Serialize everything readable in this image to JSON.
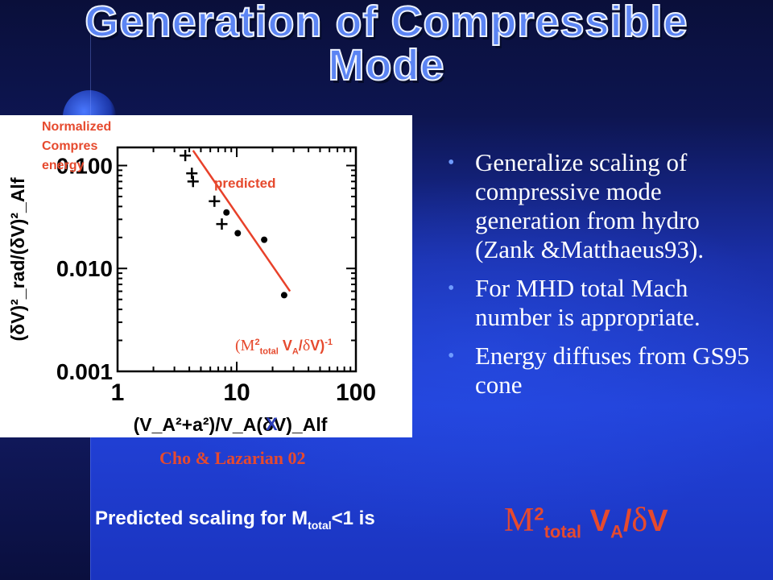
{
  "slide": {
    "title_line1": "Generation of Compressible",
    "title_line2": "Mode",
    "bullets": [
      "Generalize  scaling of compressive mode generation from hydro (Zank &Matthaeus93).",
      "For MHD total Mach number is appropriate.",
      "Energy diffuses from GS95 cone"
    ],
    "caption": "Cho & Lazarian 02",
    "bottom_text": "Predicted scaling for M",
    "bottom_sub": "total",
    "bottom_tail": "<1 is",
    "bottom_formula": {
      "m": "M",
      "sup": "2",
      "sub1": "total",
      "v": " V",
      "sub2": "A",
      "slash": "/",
      "delta": "δ",
      "v2": "V"
    },
    "annotations": {
      "normalized_lines": [
        "Normalized",
        "Compres",
        "energy"
      ],
      "predicted": "predicted",
      "scaling": {
        "open": "(",
        "m": "M",
        "sup": "2",
        "sub1": "total",
        "v": " V",
        "sub2": "A",
        "slash": "/",
        "delta": "δ",
        "close": "V)",
        "exp": "-1"
      },
      "x_marker": "X"
    },
    "colors": {
      "accent": "#e64a2e",
      "title_fill": "#5b84f3",
      "bullet": "#6f9bff"
    }
  },
  "chart_data": {
    "type": "scatter",
    "x_scale": "log",
    "y_scale": "log",
    "xlim": [
      1,
      100
    ],
    "ylim": [
      0.001,
      0.15
    ],
    "x_ticks": [
      {
        "v": 1,
        "label": "1"
      },
      {
        "v": 10,
        "label": "10"
      },
      {
        "v": 100,
        "label": "100"
      }
    ],
    "y_ticks": [
      {
        "v": 0.001,
        "label": "0.001"
      },
      {
        "v": 0.01,
        "label": "0.010"
      },
      {
        "v": 0.1,
        "label": "0.100"
      }
    ],
    "xlabel": "(V_A²+a²)/V_A(δV)_Alf",
    "ylabel": "(δV)²_rad/(δV)²_Alf",
    "series": [
      {
        "marker": "plus",
        "points": [
          [
            3.7,
            0.125
          ],
          [
            4.2,
            0.084
          ],
          [
            4.3,
            0.07
          ],
          [
            6.5,
            0.045
          ],
          [
            7.5,
            0.027
          ]
        ]
      },
      {
        "marker": "dot",
        "points": [
          [
            8.2,
            0.035
          ],
          [
            10.2,
            0.022
          ],
          [
            17,
            0.019
          ],
          [
            25,
            0.0055
          ]
        ]
      }
    ],
    "fit_line": {
      "from": [
        4.3,
        0.14
      ],
      "to": [
        28,
        0.006
      ]
    }
  }
}
